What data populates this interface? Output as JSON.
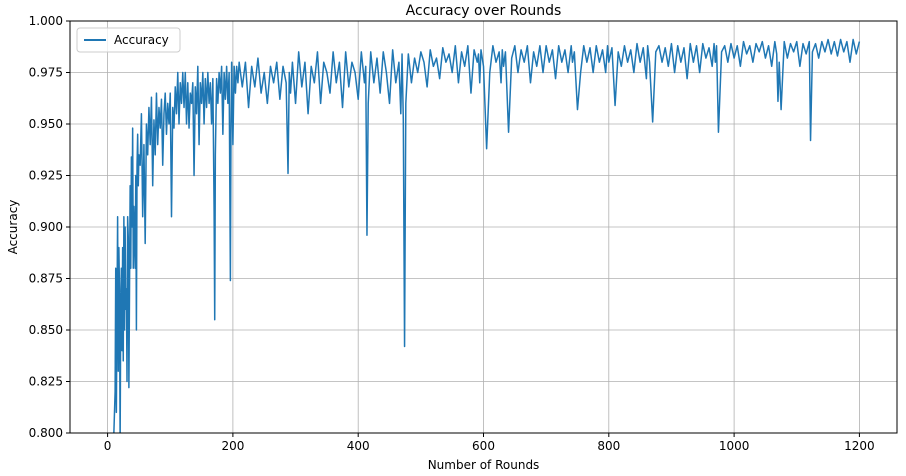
{
  "chart_data": {
    "type": "line",
    "title": "Accuracy over Rounds",
    "xlabel": "Number of Rounds",
    "ylabel": "Accuracy",
    "xlim": [
      -60,
      1260
    ],
    "ylim": [
      0.8,
      1.0
    ],
    "xticks": [
      0,
      200,
      400,
      600,
      800,
      1000,
      1200
    ],
    "xtick_labels": [
      "0",
      "200",
      "400",
      "600",
      "800",
      "1000",
      "1200"
    ],
    "yticks": [
      0.8,
      0.825,
      0.85,
      0.875,
      0.9,
      0.925,
      0.95,
      0.975,
      1.0
    ],
    "ytick_labels": [
      "0.800",
      "0.825",
      "0.850",
      "0.875",
      "0.900",
      "0.925",
      "0.950",
      "0.975",
      "1.000"
    ],
    "grid": true,
    "legend_position": "top-left",
    "colors": {
      "series": "#1f77b4",
      "grid": "#b0b0b0",
      "axis": "#000000"
    },
    "series": [
      {
        "name": "Accuracy",
        "x": [
          1,
          3,
          5,
          8,
          10,
          12,
          13,
          14,
          15,
          16,
          17,
          18,
          19,
          20,
          21,
          22,
          23,
          24,
          25,
          26,
          27,
          28,
          29,
          30,
          31,
          32,
          33,
          34,
          35,
          36,
          37,
          38,
          39,
          40,
          41,
          42,
          43,
          44,
          45,
          46,
          47,
          48,
          49,
          50,
          52,
          54,
          56,
          58,
          60,
          62,
          64,
          66,
          68,
          70,
          72,
          74,
          76,
          78,
          80,
          82,
          84,
          86,
          88,
          90,
          92,
          94,
          96,
          98,
          100,
          102,
          104,
          106,
          108,
          110,
          112,
          114,
          116,
          118,
          120,
          122,
          124,
          126,
          128,
          130,
          132,
          134,
          136,
          138,
          140,
          142,
          144,
          146,
          148,
          150,
          152,
          154,
          156,
          158,
          160,
          162,
          164,
          166,
          168,
          170,
          171,
          172,
          174,
          176,
          178,
          180,
          182,
          184,
          186,
          188,
          190,
          192,
          194,
          196,
          197,
          198,
          200,
          202,
          204,
          206,
          208,
          210,
          215,
          220,
          225,
          230,
          235,
          240,
          245,
          250,
          255,
          260,
          265,
          270,
          275,
          280,
          285,
          288,
          290,
          292,
          295,
          300,
          305,
          310,
          315,
          320,
          325,
          330,
          335,
          340,
          345,
          350,
          355,
          360,
          365,
          370,
          375,
          380,
          385,
          390,
          395,
          400,
          405,
          410,
          412,
          414,
          416,
          420,
          425,
          430,
          435,
          440,
          445,
          450,
          455,
          460,
          465,
          468,
          470,
          472,
          474,
          476,
          480,
          485,
          490,
          495,
          500,
          505,
          510,
          515,
          520,
          525,
          530,
          535,
          540,
          545,
          550,
          555,
          560,
          565,
          570,
          575,
          580,
          585,
          590,
          592,
          594,
          596,
          600,
          605,
          610,
          615,
          620,
          625,
          628,
          630,
          632,
          635,
          640,
          645,
          650,
          655,
          660,
          665,
          670,
          675,
          680,
          685,
          690,
          695,
          700,
          705,
          710,
          715,
          720,
          725,
          730,
          735,
          740,
          742,
          745,
          750,
          755,
          760,
          765,
          770,
          775,
          780,
          785,
          790,
          795,
          798,
          800,
          805,
          810,
          815,
          820,
          825,
          830,
          835,
          840,
          845,
          850,
          855,
          860,
          862,
          865,
          870,
          875,
          880,
          885,
          890,
          895,
          900,
          905,
          910,
          915,
          920,
          925,
          930,
          935,
          940,
          945,
          950,
          955,
          960,
          965,
          968,
          970,
          972,
          975,
          980,
          985,
          990,
          995,
          1000,
          1005,
          1010,
          1015,
          1020,
          1025,
          1030,
          1035,
          1040,
          1045,
          1050,
          1055,
          1060,
          1065,
          1068,
          1070,
          1072,
          1075,
          1080,
          1085,
          1090,
          1095,
          1100,
          1105,
          1110,
          1115,
          1120,
          1122,
          1125,
          1130,
          1135,
          1140,
          1145,
          1150,
          1155,
          1160,
          1165,
          1170,
          1175,
          1180,
          1185,
          1190,
          1195,
          1200
        ],
        "y": [
          0.795,
          0.79,
          0.798,
          0.79,
          0.8,
          0.82,
          0.88,
          0.81,
          0.86,
          0.905,
          0.83,
          0.89,
          0.87,
          0.795,
          0.86,
          0.88,
          0.84,
          0.89,
          0.835,
          0.905,
          0.85,
          0.9,
          0.86,
          0.87,
          0.825,
          0.905,
          0.895,
          0.822,
          0.87,
          0.92,
          0.88,
          0.934,
          0.9,
          0.948,
          0.88,
          0.91,
          0.895,
          0.88,
          0.925,
          0.85,
          0.93,
          0.945,
          0.92,
          0.935,
          0.93,
          0.955,
          0.905,
          0.94,
          0.892,
          0.95,
          0.935,
          0.958,
          0.94,
          0.963,
          0.92,
          0.952,
          0.935,
          0.965,
          0.94,
          0.958,
          0.948,
          0.962,
          0.93,
          0.955,
          0.965,
          0.945,
          0.96,
          0.95,
          0.965,
          0.905,
          0.958,
          0.948,
          0.968,
          0.955,
          0.975,
          0.95,
          0.97,
          0.96,
          0.975,
          0.958,
          0.975,
          0.95,
          0.97,
          0.948,
          0.965,
          0.96,
          0.97,
          0.925,
          0.968,
          0.955,
          0.978,
          0.94,
          0.97,
          0.96,
          0.975,
          0.95,
          0.972,
          0.958,
          0.975,
          0.96,
          0.97,
          0.95,
          0.972,
          0.908,
          0.855,
          0.935,
          0.972,
          0.96,
          0.975,
          0.965,
          0.978,
          0.945,
          0.975,
          0.962,
          0.978,
          0.96,
          0.975,
          0.874,
          0.95,
          0.98,
          0.94,
          0.978,
          0.965,
          0.978,
          0.97,
          0.98,
          0.968,
          0.98,
          0.958,
          0.978,
          0.968,
          0.982,
          0.965,
          0.975,
          0.96,
          0.978,
          0.97,
          0.98,
          0.962,
          0.978,
          0.97,
          0.926,
          0.975,
          0.965,
          0.98,
          0.96,
          0.985,
          0.968,
          0.98,
          0.955,
          0.978,
          0.97,
          0.985,
          0.96,
          0.98,
          0.975,
          0.965,
          0.985,
          0.97,
          0.98,
          0.958,
          0.985,
          0.968,
          0.98,
          0.975,
          0.962,
          0.985,
          0.97,
          0.978,
          0.896,
          0.96,
          0.985,
          0.97,
          0.982,
          0.965,
          0.985,
          0.975,
          0.96,
          0.986,
          0.97,
          0.98,
          0.955,
          0.984,
          0.952,
          0.842,
          0.96,
          0.984,
          0.97,
          0.982,
          0.975,
          0.985,
          0.98,
          0.968,
          0.986,
          0.978,
          0.982,
          0.972,
          0.987,
          0.98,
          0.984,
          0.975,
          0.988,
          0.97,
          0.985,
          0.978,
          0.988,
          0.965,
          0.986,
          0.98,
          0.984,
          0.97,
          0.986,
          0.978,
          0.938,
          0.975,
          0.988,
          0.98,
          0.985,
          0.97,
          0.986,
          0.978,
          0.985,
          0.946,
          0.982,
          0.988,
          0.975,
          0.986,
          0.98,
          0.988,
          0.97,
          0.985,
          0.978,
          0.988,
          0.975,
          0.988,
          0.98,
          0.986,
          0.972,
          0.988,
          0.98,
          0.986,
          0.975,
          0.988,
          0.98,
          0.985,
          0.957,
          0.975,
          0.988,
          0.98,
          0.987,
          0.975,
          0.988,
          0.98,
          0.986,
          0.975,
          0.988,
          0.98,
          0.987,
          0.959,
          0.985,
          0.978,
          0.988,
          0.98,
          0.986,
          0.975,
          0.989,
          0.98,
          0.987,
          0.972,
          0.988,
          0.98,
          0.951,
          0.985,
          0.988,
          0.98,
          0.987,
          0.978,
          0.989,
          0.975,
          0.988,
          0.98,
          0.987,
          0.972,
          0.989,
          0.98,
          0.988,
          0.975,
          0.989,
          0.982,
          0.987,
          0.978,
          0.989,
          0.98,
          0.988,
          0.946,
          0.985,
          0.988,
          0.98,
          0.989,
          0.982,
          0.988,
          0.978,
          0.99,
          0.984,
          0.988,
          0.98,
          0.989,
          0.985,
          0.99,
          0.982,
          0.988,
          0.978,
          0.99,
          0.984,
          0.961,
          0.98,
          0.957,
          0.99,
          0.982,
          0.989,
          0.985,
          0.99,
          0.978,
          0.989,
          0.984,
          0.99,
          0.942,
          0.985,
          0.989,
          0.982,
          0.99,
          0.985,
          0.991,
          0.984,
          0.99,
          0.983,
          0.991,
          0.985,
          0.99,
          0.98,
          0.991,
          0.984,
          0.99
        ]
      }
    ]
  }
}
